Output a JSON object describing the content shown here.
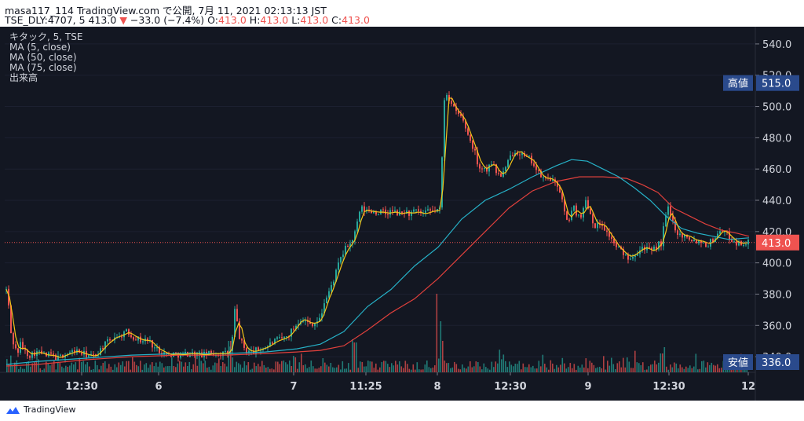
{
  "header": {
    "line1": "masa117_114 TradingView.com で公開, 7月 11, 2021 02:13:13 JST",
    "symbol": "TSE_DLY:4707, 5",
    "last": "413.0",
    "change": "−33.0 (−7.4%)",
    "o_label": "O:",
    "o": "413.0",
    "h_label": "H:",
    "h": "413.0",
    "l_label": "L:",
    "l": "413.0",
    "c_label": "C:",
    "c": "413.0"
  },
  "legend": [
    "キタック, 5, TSE",
    "MA (5, close)",
    "MA (50, close)",
    "MA (75, close)",
    "出来高"
  ],
  "footer": {
    "brand": "TradingView"
  },
  "colors": {
    "background": "#131722",
    "up": "#26a69a",
    "down": "#ef5350",
    "ma5": "#f5c518",
    "ma50": "#26b1c7",
    "ma75": "#e0403c",
    "axis_box": "#2a4a8c",
    "last_box": "#ef5350"
  },
  "chart_data": {
    "type": "candlestick",
    "y_ticks": [
      "540.0",
      "520.0",
      "500.0",
      "480.0",
      "460.0",
      "440.0",
      "420.0",
      "400.0",
      "380.0",
      "360.0",
      "340.0"
    ],
    "ylim": [
      330,
      548
    ],
    "x_ticks": [
      "12:30",
      "6",
      "7",
      "11:25",
      "8",
      "12:30",
      "9",
      "12:30",
      "12"
    ],
    "high_label": {
      "text": "高値",
      "value": "515.0"
    },
    "low_label": {
      "text": "安値",
      "value": "336.0"
    },
    "last_price": "413.0",
    "series": [
      {
        "name": "MA (5, close)",
        "color": "#f5c518"
      },
      {
        "name": "MA (50, close)",
        "color": "#26b1c7"
      },
      {
        "name": "MA (75, close)",
        "color": "#e0403c"
      }
    ],
    "price_path": [
      [
        0,
        383
      ],
      [
        3,
        372
      ],
      [
        6,
        355
      ],
      [
        10,
        347
      ],
      [
        14,
        342
      ],
      [
        18,
        348
      ],
      [
        24,
        343
      ],
      [
        30,
        341
      ],
      [
        38,
        343
      ],
      [
        46,
        342
      ],
      [
        52,
        340
      ],
      [
        56,
        342
      ],
      [
        60,
        340
      ],
      [
        66,
        339
      ],
      [
        72,
        341
      ],
      [
        80,
        342
      ],
      [
        88,
        344
      ],
      [
        96,
        342
      ],
      [
        104,
        341
      ],
      [
        110,
        340
      ],
      [
        116,
        342
      ],
      [
        122,
        346
      ],
      [
        128,
        349
      ],
      [
        134,
        351
      ],
      [
        140,
        354
      ],
      [
        144,
        352
      ],
      [
        148,
        355
      ],
      [
        152,
        356
      ],
      [
        156,
        355
      ],
      [
        160,
        353
      ],
      [
        166,
        352
      ],
      [
        172,
        350
      ],
      [
        178,
        351
      ],
      [
        184,
        349
      ],
      [
        190,
        345
      ],
      [
        196,
        344
      ],
      [
        202,
        342
      ],
      [
        208,
        341
      ],
      [
        214,
        342
      ],
      [
        222,
        341
      ],
      [
        230,
        342
      ],
      [
        240,
        342
      ],
      [
        250,
        341
      ],
      [
        260,
        342
      ],
      [
        270,
        342
      ],
      [
        278,
        342
      ],
      [
        285,
        343
      ],
      [
        288,
        352
      ],
      [
        292,
        375
      ],
      [
        294,
        362
      ],
      [
        296,
        354
      ],
      [
        299,
        350
      ],
      [
        302,
        346
      ],
      [
        306,
        344
      ],
      [
        312,
        343
      ],
      [
        318,
        344
      ],
      [
        324,
        345
      ],
      [
        330,
        346
      ],
      [
        336,
        348
      ],
      [
        342,
        350
      ],
      [
        348,
        351
      ],
      [
        354,
        352
      ],
      [
        358,
        353
      ],
      [
        364,
        357
      ],
      [
        370,
        361
      ],
      [
        376,
        365
      ],
      [
        382,
        362
      ],
      [
        388,
        361
      ],
      [
        394,
        362
      ],
      [
        400,
        364
      ],
      [
        405,
        375
      ],
      [
        410,
        380
      ],
      [
        414,
        385
      ],
      [
        418,
        391
      ],
      [
        422,
        397
      ],
      [
        426,
        403
      ],
      [
        430,
        407
      ],
      [
        434,
        411
      ],
      [
        438,
        412
      ],
      [
        442,
        416
      ],
      [
        446,
        422
      ],
      [
        448,
        428
      ],
      [
        451,
        435
      ],
      [
        454,
        434
      ],
      [
        460,
        433
      ],
      [
        466,
        433
      ],
      [
        472,
        432
      ],
      [
        478,
        433
      ],
      [
        484,
        431
      ],
      [
        490,
        433
      ],
      [
        496,
        432
      ],
      [
        502,
        431
      ],
      [
        508,
        433
      ],
      [
        514,
        431
      ],
      [
        520,
        433
      ],
      [
        526,
        432
      ],
      [
        532,
        431
      ],
      [
        538,
        433
      ],
      [
        544,
        433
      ],
      [
        550,
        434
      ],
      [
        554,
        434
      ],
      [
        556,
        500
      ],
      [
        560,
        510
      ],
      [
        564,
        505
      ],
      [
        568,
        500
      ],
      [
        572,
        497
      ],
      [
        576,
        495
      ],
      [
        580,
        493
      ],
      [
        584,
        488
      ],
      [
        588,
        482
      ],
      [
        592,
        477
      ],
      [
        596,
        472
      ],
      [
        600,
        465
      ],
      [
        604,
        460
      ],
      [
        608,
        462
      ],
      [
        612,
        458
      ],
      [
        616,
        466
      ],
      [
        620,
        463
      ],
      [
        624,
        458
      ],
      [
        630,
        456
      ],
      [
        636,
        460
      ],
      [
        642,
        468
      ],
      [
        648,
        472
      ],
      [
        652,
        471
      ],
      [
        656,
        470
      ],
      [
        660,
        467
      ],
      [
        664,
        467
      ],
      [
        668,
        466
      ],
      [
        672,
        463
      ],
      [
        676,
        458
      ],
      [
        680,
        456
      ],
      [
        686,
        453
      ],
      [
        692,
        455
      ],
      [
        698,
        450
      ],
      [
        702,
        450
      ],
      [
        706,
        445
      ],
      [
        710,
        434
      ],
      [
        714,
        426
      ],
      [
        718,
        430
      ],
      [
        722,
        436
      ],
      [
        726,
        432
      ],
      [
        730,
        430
      ],
      [
        734,
        432
      ],
      [
        738,
        440
      ],
      [
        742,
        435
      ],
      [
        746,
        428
      ],
      [
        750,
        424
      ],
      [
        754,
        424
      ],
      [
        758,
        426
      ],
      [
        762,
        422
      ],
      [
        766,
        418
      ],
      [
        770,
        417
      ],
      [
        774,
        412
      ],
      [
        778,
        410
      ],
      [
        782,
        408
      ],
      [
        786,
        406
      ],
      [
        790,
        404
      ],
      [
        794,
        404
      ],
      [
        798,
        405
      ],
      [
        802,
        407
      ],
      [
        806,
        408
      ],
      [
        810,
        410
      ],
      [
        814,
        410
      ],
      [
        818,
        408
      ],
      [
        822,
        407
      ],
      [
        826,
        409
      ],
      [
        830,
        412
      ],
      [
        834,
        412
      ],
      [
        838,
        425
      ],
      [
        842,
        436
      ],
      [
        846,
        430
      ],
      [
        850,
        425
      ],
      [
        854,
        420
      ],
      [
        858,
        418
      ],
      [
        862,
        417
      ],
      [
        866,
        418
      ],
      [
        870,
        416
      ],
      [
        874,
        415
      ],
      [
        878,
        414
      ],
      [
        882,
        414
      ],
      [
        886,
        414
      ],
      [
        890,
        412
      ],
      [
        894,
        412
      ],
      [
        898,
        414
      ],
      [
        902,
        416
      ],
      [
        906,
        418
      ],
      [
        910,
        422
      ],
      [
        914,
        420
      ],
      [
        918,
        418
      ],
      [
        922,
        416
      ],
      [
        926,
        414
      ],
      [
        930,
        413
      ],
      [
        934,
        412
      ],
      [
        938,
        413
      ],
      [
        942,
        413
      ],
      [
        946,
        413
      ]
    ],
    "ma50_path": [
      [
        0,
        335
      ],
      [
        40,
        337
      ],
      [
        100,
        339
      ],
      [
        160,
        341
      ],
      [
        220,
        342
      ],
      [
        280,
        342
      ],
      [
        330,
        343
      ],
      [
        370,
        345
      ],
      [
        400,
        348
      ],
      [
        430,
        356
      ],
      [
        460,
        372
      ],
      [
        490,
        383
      ],
      [
        520,
        398
      ],
      [
        550,
        410
      ],
      [
        580,
        428
      ],
      [
        610,
        440
      ],
      [
        640,
        447
      ],
      [
        670,
        455
      ],
      [
        700,
        462
      ],
      [
        720,
        466
      ],
      [
        740,
        465
      ],
      [
        760,
        460
      ],
      [
        780,
        455
      ],
      [
        800,
        448
      ],
      [
        820,
        440
      ],
      [
        840,
        430
      ],
      [
        860,
        422
      ],
      [
        880,
        419
      ],
      [
        900,
        417
      ],
      [
        920,
        415
      ],
      [
        946,
        416
      ]
    ],
    "ma75_path": [
      [
        0,
        334
      ],
      [
        40,
        335
      ],
      [
        100,
        338
      ],
      [
        160,
        340
      ],
      [
        220,
        341
      ],
      [
        280,
        341
      ],
      [
        330,
        342
      ],
      [
        370,
        343
      ],
      [
        400,
        344
      ],
      [
        430,
        347
      ],
      [
        460,
        357
      ],
      [
        490,
        368
      ],
      [
        520,
        377
      ],
      [
        550,
        390
      ],
      [
        580,
        405
      ],
      [
        610,
        420
      ],
      [
        640,
        435
      ],
      [
        670,
        446
      ],
      [
        700,
        452
      ],
      [
        730,
        455
      ],
      [
        760,
        455
      ],
      [
        790,
        454
      ],
      [
        810,
        450
      ],
      [
        830,
        445
      ],
      [
        850,
        435
      ],
      [
        870,
        430
      ],
      [
        890,
        425
      ],
      [
        910,
        421
      ],
      [
        930,
        419
      ],
      [
        946,
        417
      ]
    ]
  }
}
